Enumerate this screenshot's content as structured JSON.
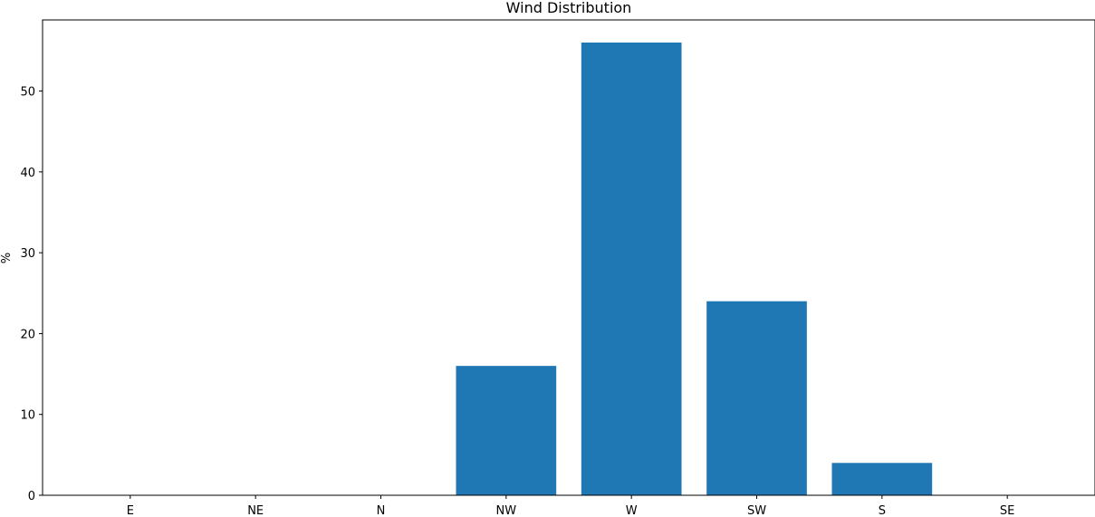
{
  "chart_data": {
    "type": "bar",
    "title": "Wind Distribution",
    "xlabel": "",
    "ylabel": "%",
    "categories": [
      "E",
      "NE",
      "N",
      "NW",
      "W",
      "SW",
      "S",
      "SE"
    ],
    "values": [
      0,
      0,
      0,
      16,
      56,
      24,
      4,
      0
    ],
    "ylim": [
      0,
      58.8
    ],
    "yticks": [
      0,
      10,
      20,
      30,
      40,
      50
    ],
    "grid": false,
    "colors": {
      "bar": "#1f77b4",
      "axis": "#000000"
    }
  }
}
